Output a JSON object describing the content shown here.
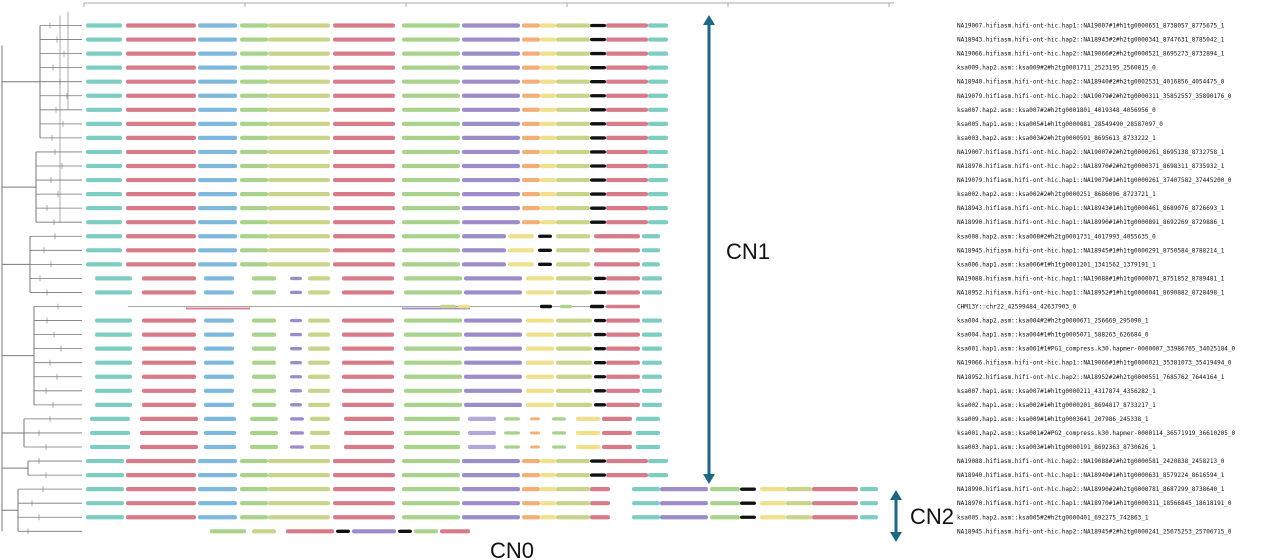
{
  "colors": {
    "arrow": "#1f6683",
    "tree": "#777777",
    "axis": "#aaaaaa",
    "blue": "#7fb8dd",
    "pink": "#d77a8a",
    "green": "#a9d28c",
    "olive": "#c9d48a",
    "purple": "#9c8cc8",
    "yellow": "#f0e08c",
    "orange": "#f2b078",
    "teal": "#7ecdc2",
    "black": "#111111",
    "lavender": "#b4a8d8"
  },
  "labels": {
    "cn1": "CN1",
    "cn2": "CN2",
    "cn0": "CN0"
  },
  "rows": [
    {
      "name": "NA19007.hifiasm.hifi-ont-hic.hap1::NA19007#1#h1tg0000651_8738057_8775675_1",
      "cls": "A"
    },
    {
      "name": "NA18943.hifiasm.hifi-ont-hic.hap2::NA18943#2#h2tg0000341_8747631_8785042_1",
      "cls": "A"
    },
    {
      "name": "NA19066.hifiasm.hifi-ont-hic.hap2::NA19066#2#h2tg0000521_8695273_8732894_1",
      "cls": "A"
    },
    {
      "name": "ksa009.hap2.asm::ksa009#2#h2tg0001711_2523195_2560815_0",
      "cls": "A"
    },
    {
      "name": "NA18940.hifiasm.hifi-ont-hic.hap2::NA18940#2#h2tg0002531_4016856_4054475_0",
      "cls": "A"
    },
    {
      "name": "NA19079.hifiasm.hifi-ont-hic.hap2::NA19079#2#h2tg0000311_35852557_35890176_0",
      "cls": "A"
    },
    {
      "name": "ksa007.hap2.asm::ksa007#2#h2tg0001801_4019348_4056956_0",
      "cls": "A"
    },
    {
      "name": "ksa005.hap1.asm::ksa005#1#h1tg0000881_28549490_28587097_0",
      "cls": "A"
    },
    {
      "name": "ksa003.hap2.asm::ksa003#2#h2tg0000591_8695613_8733222_1",
      "cls": "A"
    },
    {
      "name": "NA19007.hifiasm.hifi-ont-hic.hap2::NA19007#2#h2tg0000261_8695138_8732758_1",
      "cls": "A"
    },
    {
      "name": "NA18970.hifiasm.hifi-ont-hic.hap2::NA18970#2#h2tg0000371_8698311_8735932_1",
      "cls": "A"
    },
    {
      "name": "NA19079.hifiasm.hifi-ont-hic.hap1::NA19079#1#h1tg0000261_37407582_37445200_0",
      "cls": "A"
    },
    {
      "name": "ksa002.hap2.asm::ksa002#2#h2tg0000251_8686096_8723721_1",
      "cls": "A"
    },
    {
      "name": "NA18943.hifiasm.hifi-ont-hic.hap1::NA18943#1#h1tg0000461_8689076_8726693_1",
      "cls": "A"
    },
    {
      "name": "NA18990.hifiasm.hifi-ont-hic.hap1::NA18990#1#h1tg0000891_8692269_8729886_1",
      "cls": "A"
    },
    {
      "name": "ksa008.hap2.asm::ksa008#2#h2tg0001731_4017993_4055635_0",
      "cls": "B"
    },
    {
      "name": "NA18945.hifiasm.hifi-ont-hic.hap1::NA18945#1#h1tg0000291_8750584_8788214_1",
      "cls": "B"
    },
    {
      "name": "ksa006.hap1.asm::ksa006#1#h1tg0001201_1341562_1379191_1",
      "cls": "B"
    },
    {
      "name": "NA19088.hifiasm.hifi-ont-hic.hap1::NA19088#1#h1tg0000071_8751852_8789481_1",
      "cls": "C"
    },
    {
      "name": "NA18952.hifiasm.hifi-ont-hic.hap1::NA18952#1#h1tg0000041_8690882_8728498_1",
      "cls": "C"
    },
    {
      "name": "CHM13Y::chr22_42599484_42637903_0",
      "cls": "R"
    },
    {
      "name": "ksa004.hap2.asm::ksa004#2#h2tg0000671_256669_295090_1",
      "cls": "C"
    },
    {
      "name": "ksa004.hap1.asm::ksa004#1#h1tg0005071_588263_626684_0",
      "cls": "C"
    },
    {
      "name": "ksa001.hap1.asm::ksa001#1#PG1_compress.k30.hapmer-0000007_33986765_34025184_0",
      "cls": "C"
    },
    {
      "name": "NA19066.hifiasm.hifi-ont-hic.hap1::NA19066#1#h1tg0000021_35381073_35419494_0",
      "cls": "C"
    },
    {
      "name": "NA18952.hifiasm.hifi-ont-hic.hap2::NA18952#2#h2tg0000551_7685762_7644164_1",
      "cls": "C"
    },
    {
      "name": "ksa007.hap1.asm::ksa007#1#h1tg0000211_4317874_4356282_1",
      "cls": "C"
    },
    {
      "name": "ksa002.hap1.asm::ksa002#1#h1tg0000201_8694817_8733217_1",
      "cls": "C"
    },
    {
      "name": "ksa009.hap1.asm::ksa009#1#h1tg0003641_207986_245338_1",
      "cls": "D"
    },
    {
      "name": "ksa001.hap2.asm::ksa001#2#PG2_compress.k30.hapmer-0000114_36571919_36610205_0",
      "cls": "D"
    },
    {
      "name": "ksa003.hap1.asm::ksa003#1#h1tg0000191_8692363_8730626_1",
      "cls": "D"
    },
    {
      "name": "NA19088.hifiasm.hifi-ont-hic.hap2::NA19088#2#h2tg0000581_2420838_2458213_0",
      "cls": "E"
    },
    {
      "name": "NA18940.hifiasm.hifi-ont-hic.hap1::NA18940#1#h1tg0000631_8579224_8616594_1",
      "cls": "E"
    },
    {
      "name": "NA18990.hifiasm.hifi-ont-hic.hap2::NA18990#2#h2tg0000781_8687299_8738640_1",
      "cls": "F"
    },
    {
      "name": "NA18970.hifiasm.hifi-ont-hic.hap1::NA18970#1#h1tg0000311_18566845_18618191_0",
      "cls": "F"
    },
    {
      "name": "ksa005.hap2.asm::ksa005#2#h2tg0000401_692275_742863_1",
      "cls": "F"
    },
    {
      "name": "NA18945.hifiasm.hifi-ont-hic.hap2::NA18945#2#h2tg0000241_25675253_25706715_0",
      "cls": "G"
    }
  ]
}
